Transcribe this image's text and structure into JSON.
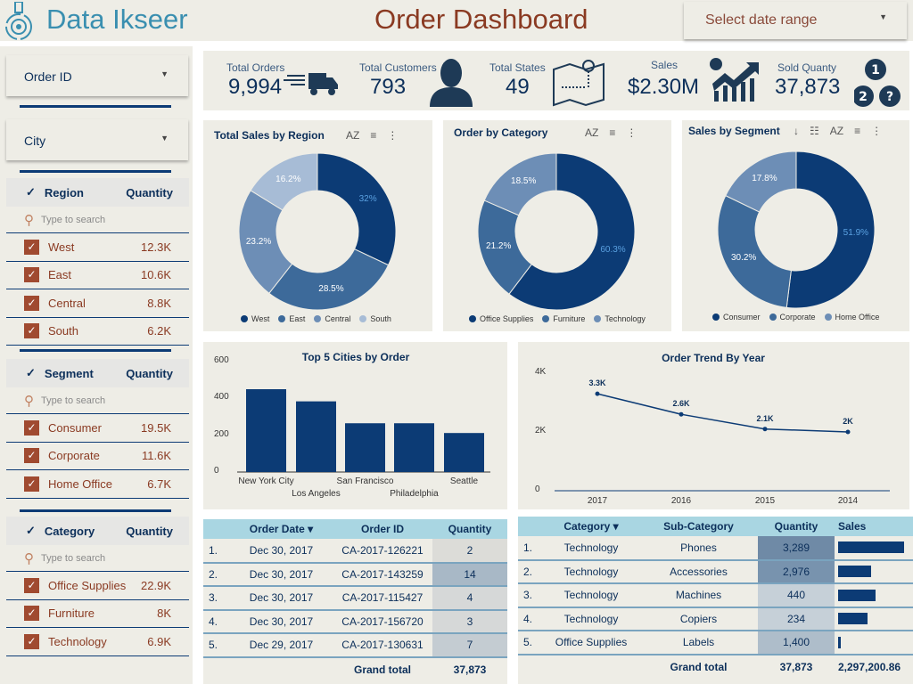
{
  "header": {
    "brand": "Data Ikseer",
    "title": "Order Dashboard",
    "date_range_placeholder": "Select date range"
  },
  "colors": {
    "dark": "#0c3b75",
    "mid": "#3d6a9a",
    "light": "#6d8eb6",
    "pale": "#a7bcd6",
    "accent": "#a04a30"
  },
  "sidebar": {
    "order_id_label": "Order ID",
    "city_label": "City",
    "search_placeholder": "Type to search",
    "filters": [
      {
        "title": "Region",
        "metric": "Quantity",
        "items": [
          {
            "label": "West",
            "value": "12.3K"
          },
          {
            "label": "East",
            "value": "10.6K"
          },
          {
            "label": "Central",
            "value": "8.8K"
          },
          {
            "label": "South",
            "value": "6.2K"
          }
        ]
      },
      {
        "title": "Segment",
        "metric": "Quantity",
        "items": [
          {
            "label": "Consumer",
            "value": "19.5K"
          },
          {
            "label": "Corporate",
            "value": "11.6K"
          },
          {
            "label": "Home Office",
            "value": "6.7K"
          }
        ]
      },
      {
        "title": "Category",
        "metric": "Quantity",
        "items": [
          {
            "label": "Office Supplies",
            "value": "22.9K"
          },
          {
            "label": "Furniture",
            "value": "8K"
          },
          {
            "label": "Technology",
            "value": "6.9K"
          }
        ]
      }
    ]
  },
  "kpis": [
    {
      "label": "Total Orders",
      "value": "9,994",
      "icon": "truck-icon"
    },
    {
      "label": "Total Customers",
      "value": "793",
      "icon": "person-icon"
    },
    {
      "label": "Total States",
      "value": "49",
      "icon": "map-icon"
    },
    {
      "label": "Sales",
      "value": "$2.30M",
      "icon": "chart-up-icon"
    },
    {
      "label": "Sold Quanty",
      "value": "37,873",
      "icon": "numbers-icon"
    }
  ],
  "chart_data": [
    {
      "type": "pie",
      "title": "Total Sales by Region",
      "categories": [
        "West",
        "East",
        "Central",
        "South"
      ],
      "values": [
        32,
        28.5,
        23.2,
        16.2
      ],
      "labels": [
        "32%",
        "28.5%",
        "23.2%",
        "16.2%"
      ],
      "legend": "bottom"
    },
    {
      "type": "pie",
      "title": "Order by Category",
      "categories": [
        "Office Supplies",
        "Furniture",
        "Technology"
      ],
      "values": [
        60.3,
        21.2,
        18.5
      ],
      "labels": [
        "60.3%",
        "21.2%",
        "18.5%"
      ],
      "legend": "bottom"
    },
    {
      "type": "pie",
      "title": "Sales by Segment",
      "categories": [
        "Consumer",
        "Corporate",
        "Home Office"
      ],
      "values": [
        51.9,
        30.2,
        17.8
      ],
      "labels": [
        "51.9%",
        "30.2%",
        "17.8%"
      ],
      "legend": "bottom"
    },
    {
      "type": "bar",
      "title": "Top 5 Cities by Order",
      "categories": [
        "New York City",
        "Los Angeles",
        "San Francisco",
        "Philadelphia",
        "Seattle"
      ],
      "values": [
        450,
        384,
        265,
        265,
        212
      ],
      "ylim": [
        0,
        600
      ],
      "yticks": [
        "0",
        "200",
        "400",
        "600"
      ]
    },
    {
      "type": "line",
      "title": "Order Trend By Year",
      "categories": [
        "2017",
        "2016",
        "2015",
        "2014"
      ],
      "values": [
        3300,
        2600,
        2100,
        2000
      ],
      "labels": [
        "3.3K",
        "2.6K",
        "2.1K",
        "2K"
      ],
      "ylim": [
        0,
        4000
      ],
      "yticks": [
        "0",
        "2K",
        "4K"
      ]
    }
  ],
  "orders_table": {
    "headers": [
      "Order Date",
      "Order ID",
      "Quantity"
    ],
    "rows": [
      [
        "1.",
        "Dec 30, 2017",
        "CA-2017-126221",
        "2"
      ],
      [
        "2.",
        "Dec 30, 2017",
        "CA-2017-143259",
        "14"
      ],
      [
        "3.",
        "Dec 30, 2017",
        "CA-2017-115427",
        "4"
      ],
      [
        "4.",
        "Dec 30, 2017",
        "CA-2017-156720",
        "3"
      ],
      [
        "5.",
        "Dec 29, 2017",
        "CA-2017-130631",
        "7"
      ]
    ],
    "grand_total_label": "Grand total",
    "grand_total": "37,873"
  },
  "subcat_table": {
    "headers": [
      "Category",
      "Sub-Category",
      "Quantity",
      "Sales"
    ],
    "rows": [
      {
        "n": "1.",
        "cat": "Technology",
        "sub": "Phones",
        "qty": "3,289",
        "sales_pct": 100
      },
      {
        "n": "2.",
        "cat": "Technology",
        "sub": "Accessories",
        "qty": "2,976",
        "sales_pct": 50
      },
      {
        "n": "3.",
        "cat": "Technology",
        "sub": "Machines",
        "qty": "440",
        "sales_pct": 57
      },
      {
        "n": "4.",
        "cat": "Technology",
        "sub": "Copiers",
        "qty": "234",
        "sales_pct": 45
      },
      {
        "n": "5.",
        "cat": "Office Supplies",
        "sub": "Labels",
        "qty": "1,400",
        "sales_pct": 3
      }
    ],
    "grand_total_label": "Grand total",
    "grand_total_qty": "37,873",
    "grand_total_sales": "2,297,200.86"
  }
}
